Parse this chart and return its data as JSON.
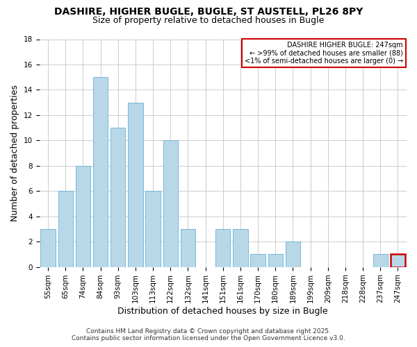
{
  "title": "DASHIRE, HIGHER BUGLE, BUGLE, ST AUSTELL, PL26 8PY",
  "subtitle": "Size of property relative to detached houses in Bugle",
  "xlabel": "Distribution of detached houses by size in Bugle",
  "ylabel": "Number of detached properties",
  "bar_color": "#b8d8e8",
  "bar_edge_color": "#6aafd4",
  "categories": [
    "55sqm",
    "65sqm",
    "74sqm",
    "84sqm",
    "93sqm",
    "103sqm",
    "113sqm",
    "122sqm",
    "132sqm",
    "141sqm",
    "151sqm",
    "161sqm",
    "170sqm",
    "180sqm",
    "189sqm",
    "199sqm",
    "209sqm",
    "218sqm",
    "228sqm",
    "237sqm",
    "247sqm"
  ],
  "values": [
    3,
    6,
    8,
    15,
    11,
    13,
    6,
    10,
    3,
    0,
    3,
    3,
    1,
    1,
    2,
    0,
    0,
    0,
    0,
    1,
    1
  ],
  "ylim": [
    0,
    18
  ],
  "yticks": [
    0,
    2,
    4,
    6,
    8,
    10,
    12,
    14,
    16,
    18
  ],
  "legend_title": "DASHIRE HIGHER BUGLE: 247sqm",
  "legend_line1": "← >99% of detached houses are smaller (88)",
  "legend_line2": "<1% of semi-detached houses are larger (0) →",
  "legend_box_color": "#cc0000",
  "highlight_bar_index": 20,
  "highlight_bar_color": "#cc0000",
  "footer_line1": "Contains HM Land Registry data © Crown copyright and database right 2025.",
  "footer_line2": "Contains public sector information licensed under the Open Government Licence v3.0.",
  "bg_color": "#ffffff",
  "grid_color": "#cccccc",
  "title_fontsize": 10,
  "subtitle_fontsize": 9,
  "axis_label_fontsize": 9,
  "tick_fontsize": 7.5,
  "footer_fontsize": 6.5
}
